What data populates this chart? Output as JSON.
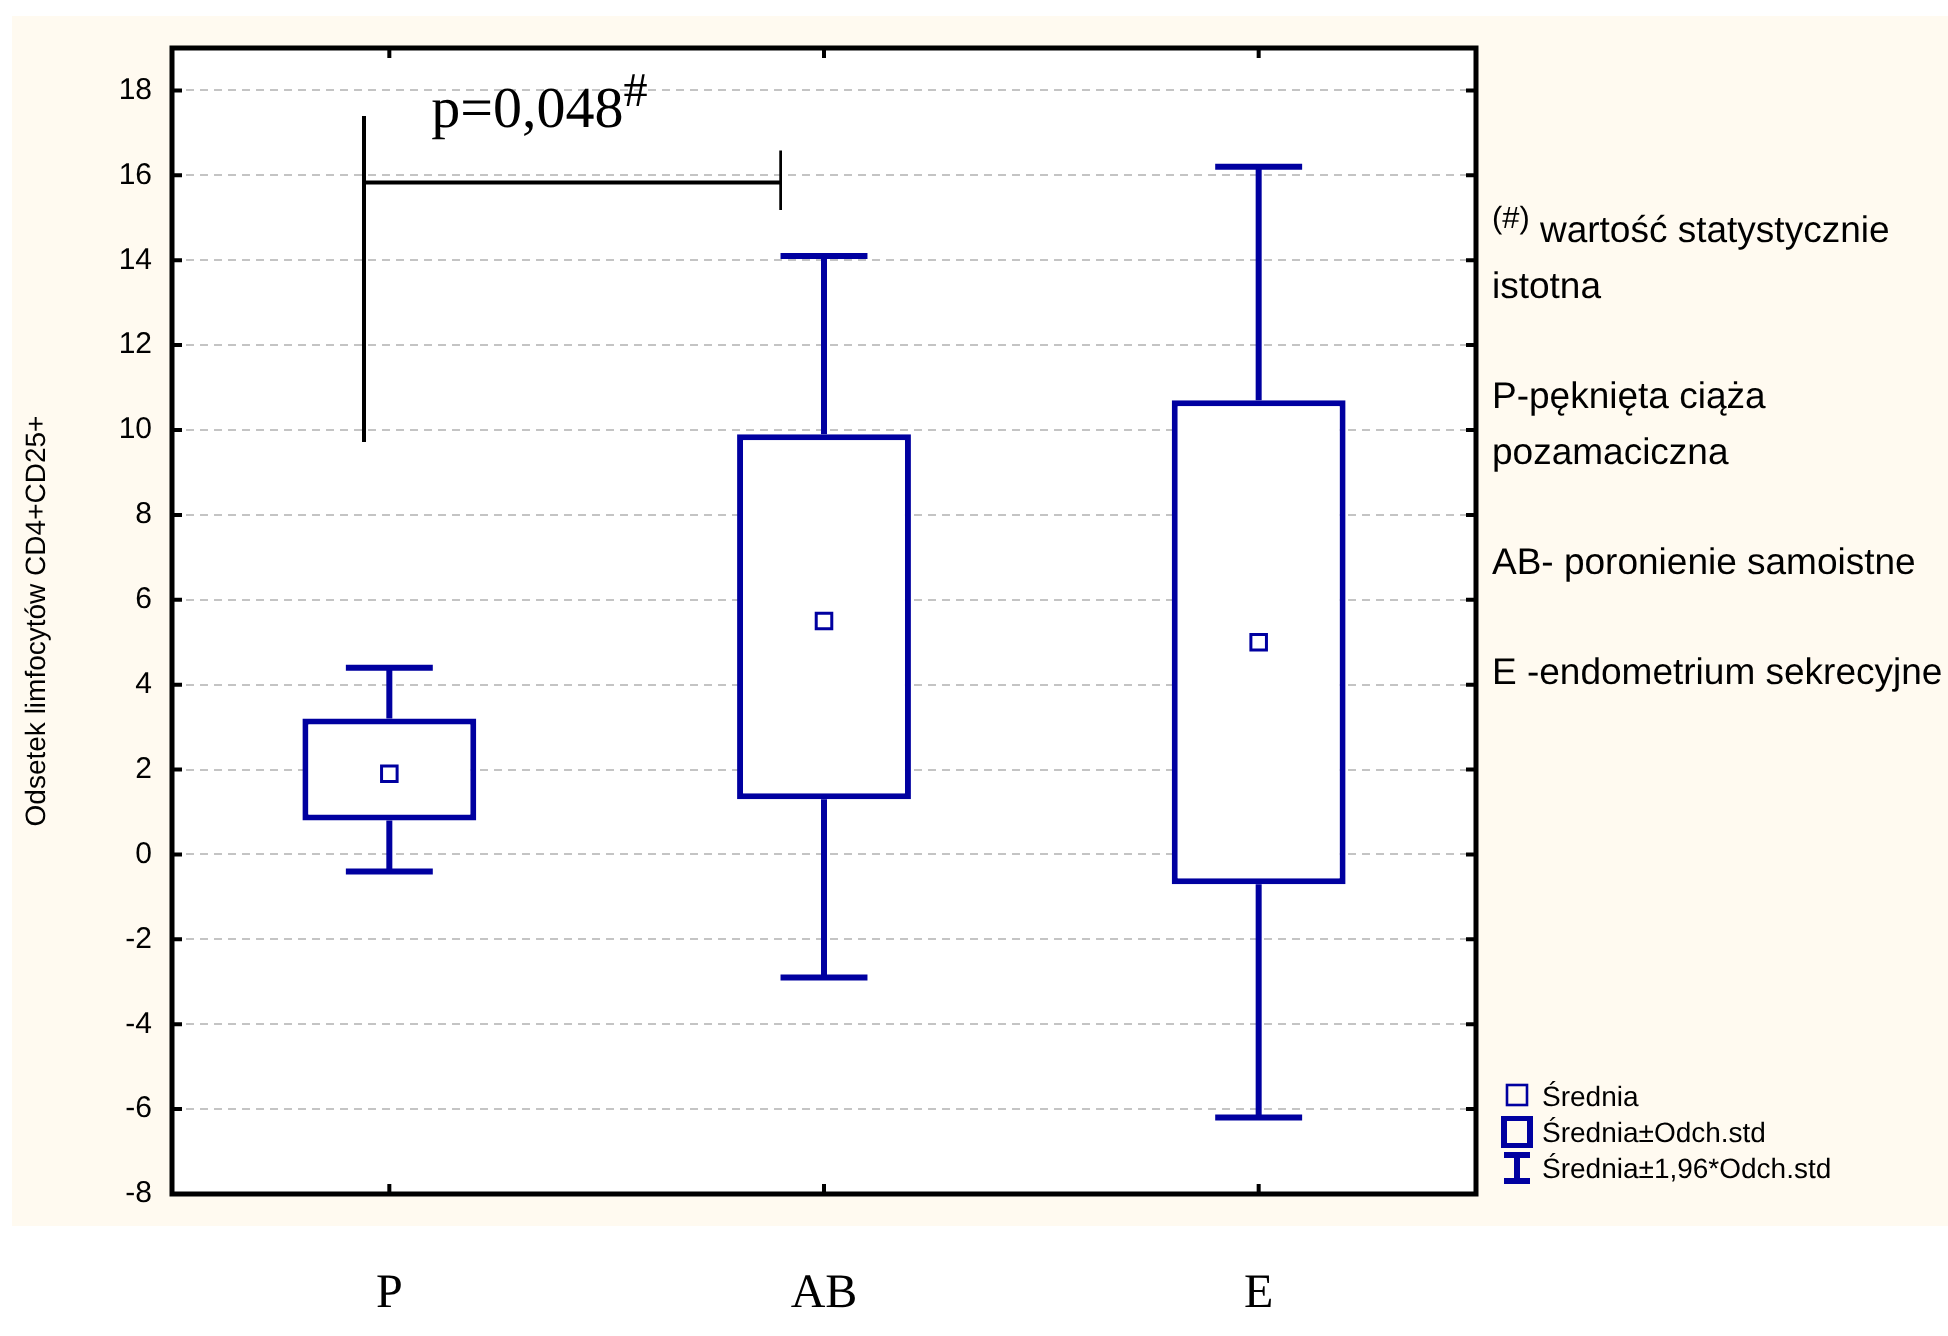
{
  "chart_data": {
    "type": "box",
    "ylabel": "Odsetek limfocytów CD4+CD25+",
    "categories": [
      "P",
      "AB",
      "E"
    ],
    "color": "#0000a0",
    "marker": "square",
    "boxes": [
      {
        "low": -0.4,
        "q1": 0.8,
        "mean": 1.9,
        "q3": 3.2,
        "high": 4.4
      },
      {
        "low": -2.9,
        "q1": 1.3,
        "mean": 5.5,
        "q3": 9.9,
        "high": 14.1
      },
      {
        "low": -6.2,
        "q1": -0.7,
        "mean": 5.0,
        "q3": 10.7,
        "high": 16.2
      }
    ],
    "ylim": [
      -8,
      19
    ],
    "yticks": [
      -8,
      -6,
      -4,
      -2,
      0,
      2,
      4,
      6,
      8,
      10,
      12,
      14,
      16,
      18
    ],
    "grid": "y",
    "annotations": [
      "p=0,048$^{#}$",
      "$^{(#)}$ wartość statystycznie istotna",
      "P-pęknięta ciąża pozamaciczna",
      "AB- poronienie samoistne",
      "E -endometrium sekrecyjne",
      "Średnia",
      "Średnia±Odch.std",
      "Średnia±1,96*Odch.std"
    ]
  }
}
